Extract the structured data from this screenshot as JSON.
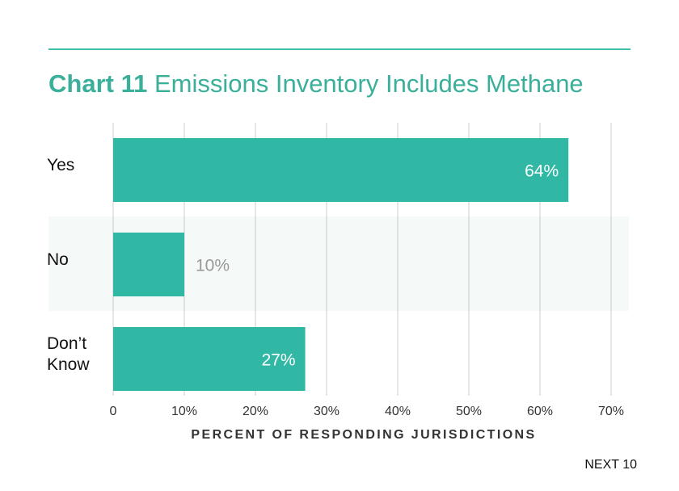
{
  "title": {
    "number": "Chart 11",
    "text": "Emissions Inventory Includes Methane"
  },
  "footer": "NEXT 10",
  "colors": {
    "bar": "#30b8a4",
    "accent": "#3aaf9a",
    "band": "#f5f9f8",
    "grid": "#cccccc",
    "label_inside": "#ffffff",
    "label_outside": "#999999"
  },
  "chart_data": {
    "type": "bar",
    "orientation": "horizontal",
    "categories": [
      "Yes",
      "No",
      "Don’t Know"
    ],
    "values": [
      64,
      10,
      27
    ],
    "value_labels": [
      "64%",
      "10%",
      "27%"
    ],
    "xlabel": "PERCENT OF RESPONDING JURISDICTIONS",
    "xlim": [
      0,
      70
    ],
    "xticks": [
      0,
      10,
      20,
      30,
      40,
      50,
      60,
      70
    ],
    "xtick_labels": [
      "0",
      "10%",
      "20%",
      "30%",
      "40%",
      "50%",
      "60%",
      "70%"
    ],
    "grid": true
  }
}
